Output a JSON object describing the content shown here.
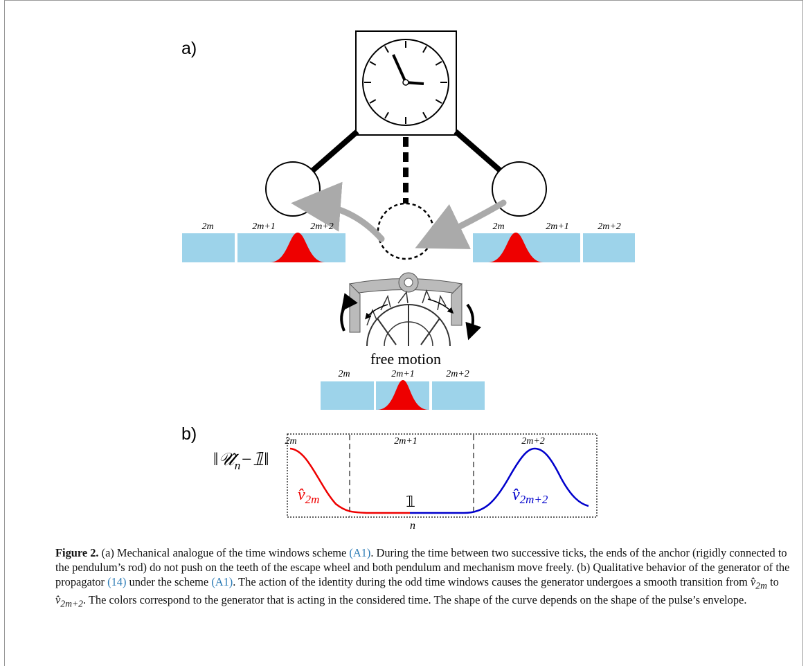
{
  "panel_a": {
    "label": "a)",
    "left_row": [
      "2m",
      "2m+1",
      "2m+2"
    ],
    "right_row": [
      "2m",
      "2m+1",
      "2m+2"
    ],
    "bottom_row": [
      "2m",
      "2m+1",
      "2m+2"
    ],
    "free_motion": "free motion"
  },
  "panel_b": {
    "label": "b)",
    "y_label": {
      "main": "‖𝒰̂",
      "sub": "n",
      "rest": "−𝟙‖"
    },
    "windows": [
      "2m",
      "2m+1",
      "2m+2"
    ],
    "left_curve": {
      "main": "v̂",
      "sub": "2m"
    },
    "middle": "𝟙",
    "right_curve": {
      "main": "v̂",
      "sub": "2m+2"
    },
    "x_label": "n"
  },
  "caption": {
    "label": "Figure 2.",
    "t0": " (a) Mechanical analogue of the time windows scheme ",
    "ref0": "(A1)",
    "t1": ". During the time between two successive ticks, the ends of the anchor (rigidly connected to the pendulum’s rod) do not push on the teeth of the escape wheel and both pendulum and mechanism move freely. (b) Qualitative behavior of the generator of the propagator ",
    "ref1": "(14)",
    "t2": " under the scheme ",
    "ref2": "(A1)",
    "t3": ". The action of the identity during the odd time windows causes the generator undergoes a smooth transition from ",
    "m0": "v̂",
    "s0": "2m",
    "t4": " to ",
    "m1": "v̂",
    "s1": "2m+2",
    "t5": ". The colors correspond to the generator that is acting in the considered time. The shape of the curve depends on the shape of the pulse’s envelope."
  }
}
